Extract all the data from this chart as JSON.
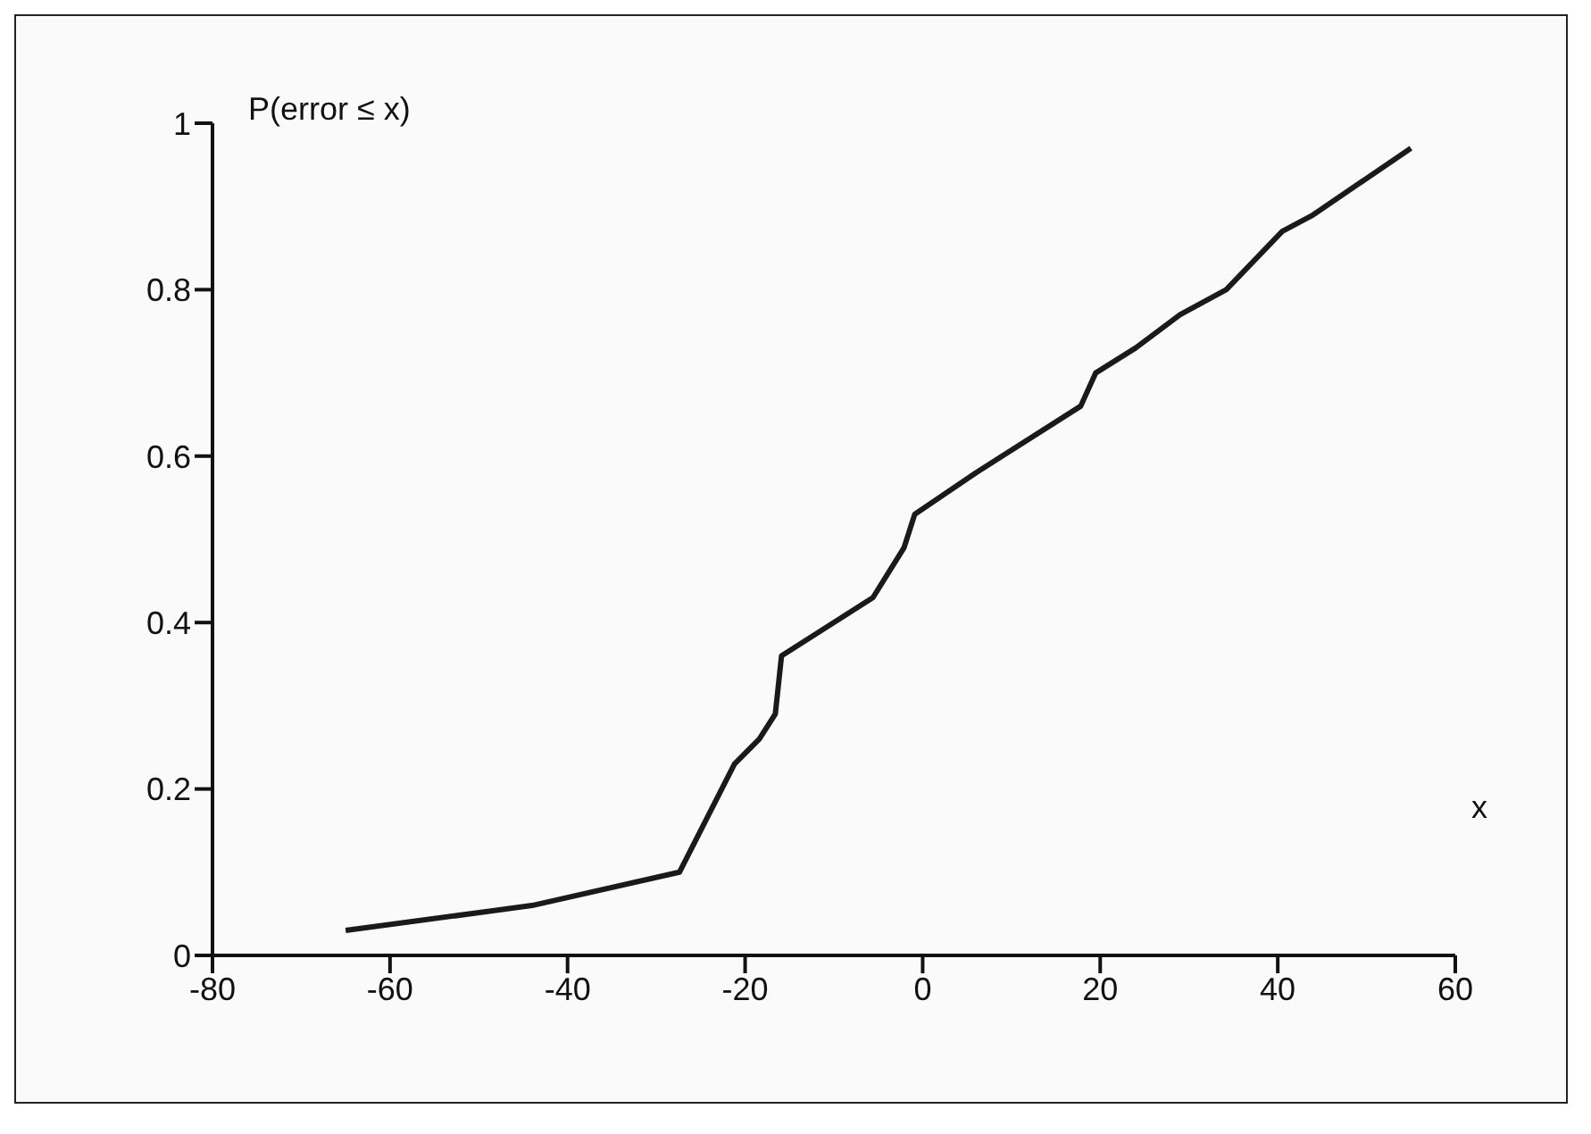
{
  "chart_data": {
    "type": "line",
    "xlabel": "x",
    "ylabel": "P(error ≤ x)",
    "x": [
      -65,
      -44,
      -27.4,
      -21.2,
      -18.4,
      -16.6,
      -15.9,
      -5.6,
      -2.1,
      -0.9,
      6,
      17.8,
      19.5,
      24,
      29,
      34.2,
      40.5,
      44,
      55
    ],
    "series": [
      {
        "color": "#1a1a1a",
        "values": [
          0.03,
          0.06,
          0.1,
          0.23,
          0.26,
          0.29,
          0.36,
          0.43,
          0.49,
          0.53,
          0.58,
          0.66,
          0.7,
          0.73,
          0.77,
          0.8,
          0.87,
          0.89,
          0.97
        ]
      }
    ],
    "xlim": [
      -80,
      60
    ],
    "xticks": [
      -80,
      -60,
      -40,
      -20,
      0,
      20,
      40,
      60
    ],
    "ylim": [
      0,
      1
    ],
    "yticks": [
      0,
      0.2,
      0.4,
      0.6,
      0.8,
      1
    ],
    "grid": false,
    "legend": false,
    "marker": "none",
    "line_style": "solid"
  }
}
